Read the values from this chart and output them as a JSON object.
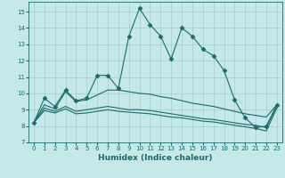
{
  "xlabel": "Humidex (Indice chaleur)",
  "xlim": [
    -0.5,
    23.5
  ],
  "ylim": [
    7,
    15.6
  ],
  "yticks": [
    7,
    8,
    9,
    10,
    11,
    12,
    13,
    14,
    15
  ],
  "xticks": [
    0,
    1,
    2,
    3,
    4,
    5,
    6,
    7,
    8,
    9,
    10,
    11,
    12,
    13,
    14,
    15,
    16,
    17,
    18,
    19,
    20,
    21,
    22,
    23
  ],
  "bg_color": "#c5e8e8",
  "line_color": "#1a6b6b",
  "grid_color": "#a5cccc",
  "lines": [
    {
      "x": [
        0,
        1,
        2,
        3,
        4,
        5,
        6,
        7,
        8,
        9,
        10,
        11,
        12,
        13,
        14,
        15,
        16,
        17,
        18,
        19,
        20,
        21,
        22,
        23
      ],
      "y": [
        8.2,
        9.7,
        9.2,
        10.2,
        9.55,
        9.7,
        11.1,
        11.1,
        10.3,
        13.5,
        15.2,
        14.2,
        13.5,
        12.1,
        14.0,
        13.5,
        12.7,
        12.3,
        11.4,
        9.6,
        8.5,
        7.9,
        8.0,
        9.3
      ],
      "marker": "D",
      "ms": 2.5
    },
    {
      "x": [
        0,
        1,
        2,
        3,
        4,
        5,
        6,
        7,
        8,
        9,
        10,
        11,
        12,
        13,
        14,
        15,
        16,
        17,
        18,
        19,
        20,
        21,
        22,
        23
      ],
      "y": [
        8.2,
        9.3,
        9.05,
        10.1,
        9.5,
        9.6,
        9.9,
        10.2,
        10.2,
        10.1,
        10.0,
        9.95,
        9.8,
        9.7,
        9.55,
        9.4,
        9.3,
        9.2,
        9.05,
        8.9,
        8.75,
        8.65,
        8.55,
        9.3
      ],
      "marker": null,
      "ms": 0
    },
    {
      "x": [
        0,
        1,
        2,
        3,
        4,
        5,
        6,
        7,
        8,
        9,
        10,
        11,
        12,
        13,
        14,
        15,
        16,
        17,
        18,
        19,
        20,
        21,
        22,
        23
      ],
      "y": [
        8.2,
        9.1,
        8.9,
        9.2,
        8.9,
        9.0,
        9.1,
        9.2,
        9.1,
        9.0,
        9.0,
        8.95,
        8.85,
        8.75,
        8.65,
        8.55,
        8.45,
        8.4,
        8.3,
        8.2,
        8.1,
        8.05,
        7.9,
        9.25
      ],
      "marker": null,
      "ms": 0
    },
    {
      "x": [
        0,
        1,
        2,
        3,
        4,
        5,
        6,
        7,
        8,
        9,
        10,
        11,
        12,
        13,
        14,
        15,
        16,
        17,
        18,
        19,
        20,
        21,
        22,
        23
      ],
      "y": [
        8.2,
        8.95,
        8.8,
        9.05,
        8.75,
        8.8,
        8.9,
        9.0,
        8.9,
        8.85,
        8.8,
        8.75,
        8.65,
        8.55,
        8.5,
        8.4,
        8.3,
        8.25,
        8.15,
        8.05,
        7.95,
        7.85,
        7.7,
        9.1
      ],
      "marker": null,
      "ms": 0
    }
  ]
}
